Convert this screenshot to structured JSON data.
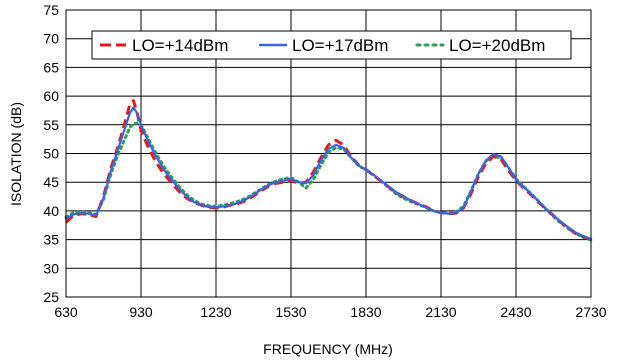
{
  "chart_data": {
    "type": "line",
    "title": "",
    "xlabel": "FREQUENCY (MHz)",
    "ylabel": "ISOLATION (dB)",
    "xlim": [
      630,
      2730
    ],
    "ylim": [
      25,
      75
    ],
    "xticks": [
      630,
      930,
      1230,
      1530,
      1830,
      2130,
      2430,
      2730
    ],
    "yticks": [
      25,
      30,
      35,
      40,
      45,
      50,
      55,
      60,
      65,
      70,
      75
    ],
    "grid": true,
    "legend_position": "top-right",
    "series": [
      {
        "name": "LO=+14dBm",
        "color": "#dd1c1c",
        "style": "dashed",
        "x": [
          630,
          660,
          690,
          720,
          750,
          780,
          810,
          840,
          870,
          885,
          900,
          915,
          930,
          960,
          990,
          1020,
          1050,
          1080,
          1110,
          1140,
          1170,
          1200,
          1230,
          1260,
          1290,
          1320,
          1350,
          1380,
          1410,
          1440,
          1470,
          1500,
          1530,
          1560,
          1590,
          1620,
          1650,
          1680,
          1710,
          1740,
          1770,
          1800,
          1830,
          1860,
          1890,
          1920,
          1950,
          1980,
          2010,
          2040,
          2070,
          2100,
          2130,
          2160,
          2190,
          2220,
          2250,
          2280,
          2310,
          2340,
          2370,
          2400,
          2430,
          2460,
          2490,
          2520,
          2550,
          2580,
          2610,
          2640,
          2670,
          2700,
          2730
        ],
        "values": [
          38.0,
          39.2,
          39.5,
          39.4,
          39.0,
          42.5,
          47.5,
          51.5,
          56.0,
          58.5,
          59.2,
          57.0,
          54.0,
          51.0,
          48.5,
          46.5,
          45.0,
          43.5,
          42.3,
          41.5,
          41.0,
          40.6,
          40.5,
          40.7,
          41.0,
          41.3,
          41.8,
          42.6,
          43.5,
          44.3,
          44.8,
          45.0,
          45.3,
          44.8,
          45.0,
          46.8,
          49.3,
          51.5,
          52.3,
          51.5,
          49.5,
          48.0,
          47.2,
          46.2,
          45.2,
          44.2,
          43.2,
          42.5,
          41.8,
          41.2,
          40.7,
          40.0,
          39.7,
          39.5,
          39.6,
          40.5,
          43.0,
          46.0,
          48.3,
          49.5,
          49.0,
          47.0,
          45.3,
          44.0,
          42.8,
          41.5,
          40.3,
          39.2,
          38.0,
          37.0,
          36.0,
          35.5,
          35.0
        ]
      },
      {
        "name": "LO=+17dBm",
        "color": "#3b64e0",
        "style": "solid",
        "x": [
          630,
          660,
          690,
          720,
          750,
          780,
          810,
          840,
          870,
          885,
          900,
          915,
          930,
          960,
          990,
          1020,
          1050,
          1080,
          1110,
          1140,
          1170,
          1200,
          1230,
          1260,
          1290,
          1320,
          1350,
          1380,
          1410,
          1440,
          1470,
          1500,
          1530,
          1560,
          1590,
          1620,
          1650,
          1680,
          1710,
          1740,
          1770,
          1800,
          1830,
          1860,
          1890,
          1920,
          1950,
          1980,
          2010,
          2040,
          2070,
          2100,
          2130,
          2160,
          2190,
          2220,
          2250,
          2280,
          2310,
          2340,
          2370,
          2400,
          2430,
          2460,
          2490,
          2520,
          2550,
          2580,
          2610,
          2640,
          2670,
          2700,
          2730
        ],
        "values": [
          38.6,
          39.4,
          39.6,
          39.5,
          39.2,
          42.2,
          47.0,
          51.0,
          55.0,
          57.0,
          58.0,
          57.0,
          55.0,
          52.0,
          49.5,
          47.3,
          45.5,
          44.0,
          42.6,
          41.6,
          41.0,
          40.7,
          40.6,
          40.8,
          41.0,
          41.4,
          42.0,
          42.8,
          43.7,
          44.5,
          45.0,
          45.3,
          45.6,
          45.0,
          44.8,
          46.3,
          48.8,
          50.8,
          51.5,
          51.0,
          49.3,
          47.9,
          47.2,
          46.3,
          45.3,
          44.3,
          43.3,
          42.5,
          41.8,
          41.2,
          40.6,
          40.0,
          39.7,
          39.5,
          39.6,
          40.6,
          43.4,
          46.5,
          48.8,
          49.9,
          49.5,
          47.5,
          45.5,
          44.2,
          43.0,
          41.7,
          40.4,
          39.2,
          38.1,
          37.1,
          36.2,
          35.6,
          35.1
        ]
      },
      {
        "name": "LO=+20dBm",
        "color": "#2f9e5a",
        "style": "dotted",
        "x": [
          630,
          660,
          690,
          720,
          750,
          780,
          810,
          840,
          870,
          885,
          900,
          915,
          930,
          960,
          990,
          1020,
          1050,
          1080,
          1110,
          1140,
          1170,
          1200,
          1230,
          1260,
          1290,
          1320,
          1350,
          1380,
          1410,
          1440,
          1470,
          1500,
          1530,
          1560,
          1590,
          1620,
          1650,
          1680,
          1710,
          1740,
          1770,
          1800,
          1830,
          1860,
          1890,
          1920,
          1950,
          1980,
          2010,
          2040,
          2070,
          2100,
          2130,
          2160,
          2190,
          2220,
          2250,
          2280,
          2310,
          2340,
          2370,
          2400,
          2430,
          2460,
          2490,
          2520,
          2550,
          2580,
          2610,
          2640,
          2670,
          2700,
          2730
        ],
        "values": [
          38.9,
          39.7,
          39.8,
          39.7,
          39.4,
          42.0,
          46.5,
          50.0,
          53.0,
          54.5,
          55.2,
          55.3,
          55.0,
          52.5,
          50.0,
          47.8,
          46.0,
          44.4,
          42.9,
          41.9,
          41.2,
          40.9,
          40.8,
          41.0,
          41.3,
          41.7,
          42.2,
          43.0,
          43.8,
          44.6,
          45.2,
          45.6,
          45.8,
          45.0,
          44.0,
          45.5,
          48.0,
          50.2,
          51.0,
          50.8,
          49.3,
          47.9,
          47.1,
          46.2,
          45.2,
          44.1,
          43.0,
          42.2,
          41.6,
          41.1,
          40.6,
          40.0,
          39.7,
          39.6,
          39.8,
          40.8,
          43.5,
          46.5,
          48.7,
          49.5,
          49.2,
          47.5,
          45.6,
          44.3,
          43.0,
          41.7,
          40.3,
          39.0,
          37.9,
          36.9,
          36.0,
          35.4,
          34.9
        ]
      }
    ]
  }
}
